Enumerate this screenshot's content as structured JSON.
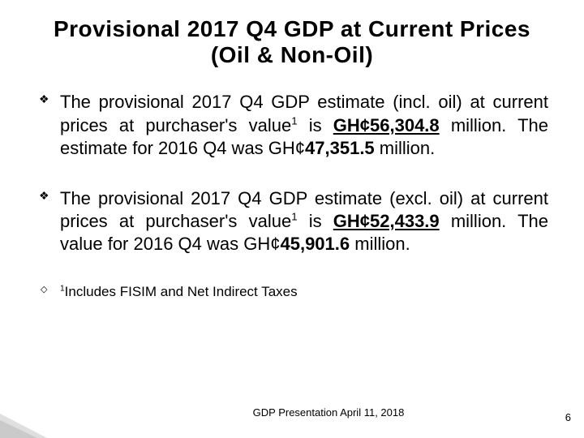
{
  "title": "Provisional 2017 Q4 GDP at Current Prices (Oil & Non-Oil)",
  "bullets": {
    "b1": {
      "t1": "The provisional 2017 Q4 GDP estimate (incl. oil) at current prices at purchaser's value",
      "sup1": "1",
      "t2": " is ",
      "val1": "GH¢56,304.8",
      "t3": " million. The estimate for 2016 Q4 was GH¢",
      "val2": "47,351.5",
      "t4": " million."
    },
    "b2": {
      "t1": "The provisional 2017 Q4 GDP estimate (excl. oil) at current prices at purchaser's value",
      "sup1": "1",
      "t2": "  is ",
      "val1": "GH¢52,433.9",
      "t3": " million. The value for 2016 Q4 was GH¢",
      "val2": "45,901.6",
      "t4": " million."
    },
    "note": {
      "sup": "1",
      "txt": "Includes FISIM and Net Indirect Taxes"
    }
  },
  "footer": "GDP Presentation April 11, 2018",
  "page_number": "6"
}
